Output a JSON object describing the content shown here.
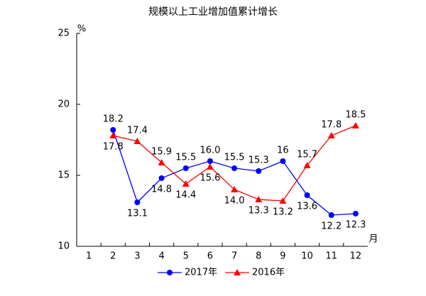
{
  "chart_data": {
    "type": "line",
    "title": "规模以上工业增加值累计增长",
    "y_unit": "%",
    "x_unit": "月",
    "categories": [
      "1",
      "2",
      "3",
      "4",
      "5",
      "6",
      "7",
      "8",
      "9",
      "10",
      "11",
      "12"
    ],
    "series": [
      {
        "name": "2017年",
        "color": "#0000ff",
        "marker": "circle",
        "values": [
          null,
          18.2,
          13.1,
          14.8,
          15.5,
          16.0,
          15.5,
          15.3,
          16,
          13.6,
          12.2,
          12.3
        ],
        "value_labels": [
          null,
          "18.2",
          "13.1",
          "14.8",
          "15.5",
          "16.0",
          "15.5",
          "15.3",
          "16",
          "13.6",
          "12.2",
          "12.3"
        ]
      },
      {
        "name": "2016年",
        "color": "#ff0000",
        "marker": "triangle",
        "values": [
          null,
          17.8,
          17.4,
          15.9,
          14.4,
          15.6,
          14.0,
          13.3,
          13.2,
          15.7,
          17.8,
          18.5
        ],
        "value_labels": [
          null,
          "17.8",
          "17.4",
          "15.9",
          "14.4",
          "15.6",
          "14.0",
          "13.3",
          "13.2",
          "15.7",
          "17.8",
          "18.5"
        ]
      }
    ],
    "ylim": [
      10,
      25
    ],
    "yticks": [
      10,
      15,
      20,
      25
    ],
    "grid": false,
    "legend": "bottom"
  }
}
